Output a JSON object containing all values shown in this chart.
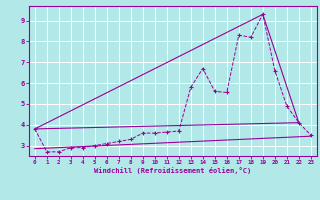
{
  "xlabel": "Windchill (Refroidissement éolien,°C)",
  "bg_color": "#b3e8e8",
  "line_color": "#990099",
  "grid_color": "#ffffff",
  "xlim": [
    -0.5,
    23.5
  ],
  "ylim": [
    2.5,
    9.7
  ],
  "xticks": [
    0,
    1,
    2,
    3,
    4,
    5,
    6,
    7,
    8,
    9,
    10,
    11,
    12,
    13,
    14,
    15,
    16,
    17,
    18,
    19,
    20,
    21,
    22,
    23
  ],
  "yticks": [
    3,
    4,
    5,
    6,
    7,
    8,
    9
  ],
  "data_x": [
    0,
    1,
    2,
    3,
    4,
    5,
    6,
    7,
    8,
    9,
    10,
    11,
    12,
    13,
    14,
    15,
    16,
    17,
    18,
    19,
    20,
    21,
    22,
    23
  ],
  "data_y": [
    3.8,
    2.7,
    2.7,
    2.9,
    2.9,
    3.0,
    3.1,
    3.2,
    3.3,
    3.6,
    3.6,
    3.65,
    3.7,
    5.8,
    6.7,
    5.6,
    5.55,
    8.3,
    8.2,
    9.3,
    6.6,
    4.9,
    4.1,
    3.5
  ],
  "env1": {
    "x": [
      0,
      19
    ],
    "y": [
      3.8,
      9.3
    ]
  },
  "env2": {
    "x": [
      19,
      22
    ],
    "y": [
      9.3,
      4.1
    ]
  },
  "env3": {
    "x": [
      0,
      22
    ],
    "y": [
      3.8,
      4.1
    ]
  },
  "env4": {
    "x": [
      0,
      23
    ],
    "y": [
      2.85,
      3.45
    ]
  }
}
